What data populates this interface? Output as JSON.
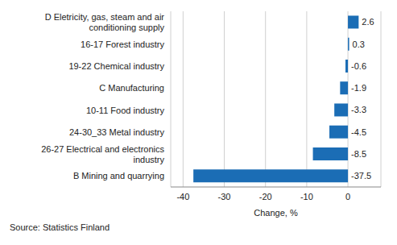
{
  "chart_data": {
    "type": "bar",
    "orientation": "horizontal",
    "categories": [
      "D Eletricity, gas, steam and air conditioning supply",
      "16-17 Forest industry",
      "19-22 Chemical industry",
      "C Manufacturing",
      "10-11 Food industry",
      "24-30_33 Metal industry",
      "26-27 Electrical and electronics industry",
      "B Mining and quarrying"
    ],
    "values": [
      2.6,
      0.3,
      -0.6,
      -1.9,
      -3.3,
      -4.5,
      -8.5,
      -37.5
    ],
    "color": "#1b6db5",
    "xlabel": "Change, %",
    "xlim": [
      -43,
      8
    ],
    "xticks": [
      -40,
      -30,
      -20,
      -10,
      0
    ],
    "grid": true,
    "data_labels": true,
    "source": "Source: Statistics Finland"
  }
}
